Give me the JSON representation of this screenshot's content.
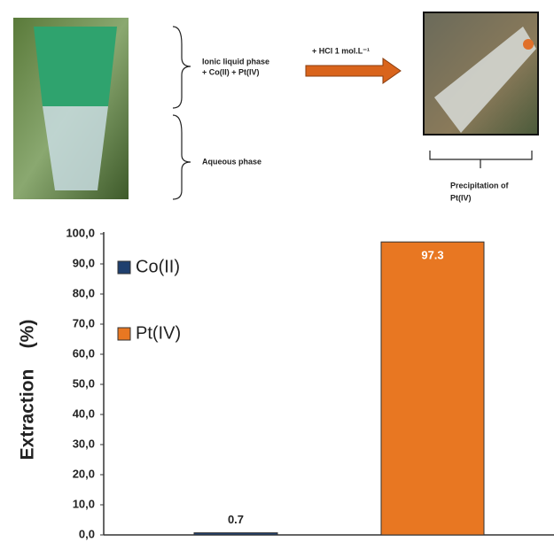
{
  "chart_data": {
    "type": "bar",
    "y_label": "Extraction    (%)",
    "categories": [
      null,
      null
    ],
    "series": [
      {
        "name": "Co(II)",
        "color": "#1f3f6e",
        "values": [
          0.7,
          null
        ]
      },
      {
        "name": "Pt(IV)",
        "color": "#e87722",
        "values": [
          null,
          97.3
        ]
      }
    ],
    "ylim": [
      0,
      100
    ],
    "yticks": [
      {
        "value": 0,
        "label": "0,0"
      },
      {
        "value": 10,
        "label": "10,0"
      },
      {
        "value": 20,
        "label": "20,0"
      },
      {
        "value": 30,
        "label": "30,0"
      },
      {
        "value": 40,
        "label": "40,0"
      },
      {
        "value": 50,
        "label": "50,0"
      },
      {
        "value": 60,
        "label": "60,0"
      },
      {
        "value": 70,
        "label": "70,0"
      },
      {
        "value": 80,
        "label": "80,0"
      },
      {
        "value": 90,
        "label": "90,0"
      },
      {
        "value": 100,
        "label": "100,0"
      }
    ],
    "legend": "upper left",
    "annotations": {
      "ionic_phase": [
        "Ionic liquid phase",
        "+ Co(II) + Pt(IV)"
      ],
      "reagent": "+ HCl 1 mol.L⁻¹",
      "aqueous_phase": "Aqueous phase",
      "precipitation": [
        "Precipitation of",
        "Pt(IV)"
      ]
    }
  }
}
